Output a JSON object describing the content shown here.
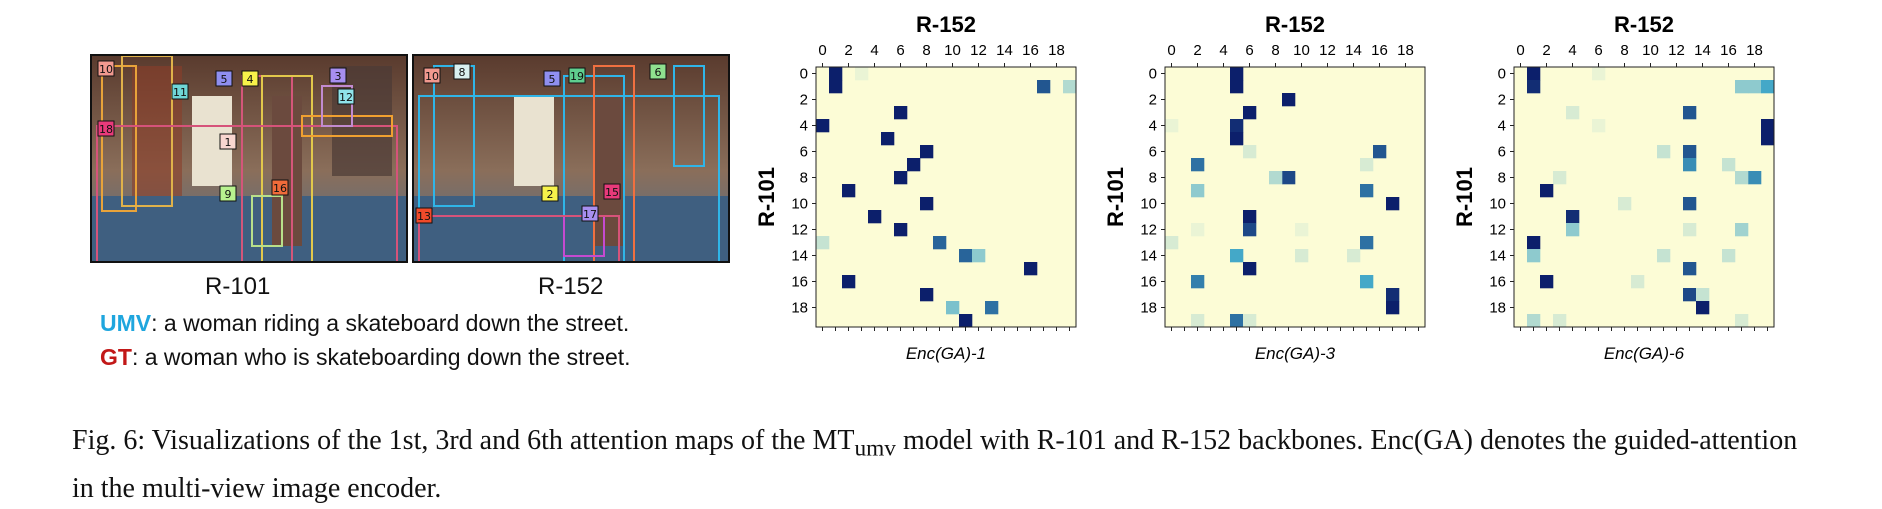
{
  "left_figure": {
    "image_labels": [
      "R-101",
      "R-152"
    ],
    "caption_umv": {
      "tag": "UMV",
      "text": ": a woman riding a skateboard down the street."
    },
    "caption_gt": {
      "tag": "GT",
      "text": ": a woman who is skateboarding down the street."
    },
    "r101_box_ids": [
      "10",
      "18",
      "11",
      "5",
      "4",
      "3",
      "12",
      "1",
      "9",
      "16"
    ],
    "r152_box_ids": [
      "10",
      "8",
      "5",
      "19",
      "6",
      "2",
      "15",
      "17",
      "13"
    ]
  },
  "colors": {
    "umv": "#1fa6de",
    "gt": "#c21818",
    "low": "#fcfcd6",
    "high": "#0c1f6b"
  },
  "chart_data": [
    {
      "type": "heatmap",
      "title": "R-152",
      "ylabel": "R-101",
      "xlabel": "Enc(GA)-1",
      "x_ticks": [
        "0",
        "2",
        "4",
        "6",
        "8",
        "10",
        "12",
        "14",
        "16",
        "18"
      ],
      "y_ticks": [
        "0",
        "2",
        "4",
        "6",
        "8",
        "10",
        "12",
        "14",
        "16",
        "18"
      ],
      "size": 20,
      "cells": [
        [
          0,
          1,
          1.0
        ],
        [
          1,
          1,
          1.0
        ],
        [
          0,
          3,
          0.05
        ],
        [
          1,
          17,
          0.8
        ],
        [
          1,
          19,
          0.2
        ],
        [
          3,
          6,
          1.0
        ],
        [
          4,
          0,
          1.0
        ],
        [
          5,
          5,
          1.0
        ],
        [
          6,
          8,
          1.0
        ],
        [
          7,
          7,
          1.0
        ],
        [
          8,
          6,
          1.0
        ],
        [
          9,
          2,
          1.0
        ],
        [
          10,
          8,
          1.0
        ],
        [
          11,
          4,
          1.0
        ],
        [
          12,
          6,
          1.0
        ],
        [
          13,
          0,
          0.15
        ],
        [
          13,
          9,
          0.75
        ],
        [
          14,
          11,
          0.75
        ],
        [
          14,
          12,
          0.3
        ],
        [
          15,
          16,
          1.0
        ],
        [
          16,
          2,
          1.0
        ],
        [
          17,
          8,
          1.0
        ],
        [
          18,
          10,
          0.35
        ],
        [
          18,
          13,
          0.7
        ],
        [
          19,
          11,
          1.0
        ]
      ]
    },
    {
      "type": "heatmap",
      "title": "R-152",
      "ylabel": "R-101",
      "xlabel": "Enc(GA)-3",
      "x_ticks": [
        "0",
        "2",
        "4",
        "6",
        "8",
        "10",
        "12",
        "14",
        "16",
        "18"
      ],
      "y_ticks": [
        "0",
        "2",
        "4",
        "6",
        "8",
        "10",
        "12",
        "14",
        "16",
        "18"
      ],
      "size": 20,
      "cells": [
        [
          0,
          5,
          1.0
        ],
        [
          1,
          5,
          1.0
        ],
        [
          2,
          9,
          1.0
        ],
        [
          3,
          6,
          1.0
        ],
        [
          4,
          5,
          0.95
        ],
        [
          5,
          5,
          1.0
        ],
        [
          6,
          6,
          0.1
        ],
        [
          6,
          16,
          0.8
        ],
        [
          7,
          2,
          0.7
        ],
        [
          7,
          15,
          0.1
        ],
        [
          8,
          9,
          0.85
        ],
        [
          8,
          8,
          0.2
        ],
        [
          9,
          2,
          0.3
        ],
        [
          9,
          15,
          0.7
        ],
        [
          10,
          17,
          1.0
        ],
        [
          11,
          6,
          1.0
        ],
        [
          12,
          6,
          0.85
        ],
        [
          13,
          0,
          0.1
        ],
        [
          13,
          15,
          0.7
        ],
        [
          14,
          5,
          0.5
        ],
        [
          14,
          10,
          0.1
        ],
        [
          14,
          14,
          0.1
        ],
        [
          15,
          6,
          1.0
        ],
        [
          16,
          2,
          0.65
        ],
        [
          16,
          15,
          0.5
        ],
        [
          17,
          17,
          0.95
        ],
        [
          18,
          17,
          1.0
        ],
        [
          19,
          5,
          0.7
        ],
        [
          19,
          2,
          0.1
        ],
        [
          19,
          6,
          0.1
        ],
        [
          12,
          2,
          0.05
        ],
        [
          12,
          10,
          0.05
        ],
        [
          4,
          0,
          0.05
        ]
      ]
    },
    {
      "type": "heatmap",
      "title": "R-152",
      "ylabel": "R-101",
      "xlabel": "Enc(GA)-6",
      "x_ticks": [
        "0",
        "2",
        "4",
        "6",
        "8",
        "10",
        "12",
        "14",
        "16",
        "18"
      ],
      "y_ticks": [
        "0",
        "2",
        "4",
        "6",
        "8",
        "10",
        "12",
        "14",
        "16",
        "18"
      ],
      "size": 20,
      "cells": [
        [
          0,
          1,
          1.0
        ],
        [
          1,
          1,
          0.95
        ],
        [
          1,
          17,
          0.3
        ],
        [
          1,
          18,
          0.3
        ],
        [
          1,
          19,
          0.5
        ],
        [
          3,
          13,
          0.8
        ],
        [
          3,
          4,
          0.1
        ],
        [
          4,
          19,
          1.0
        ],
        [
          5,
          19,
          1.0
        ],
        [
          6,
          13,
          0.8
        ],
        [
          6,
          11,
          0.15
        ],
        [
          7,
          13,
          0.6
        ],
        [
          7,
          16,
          0.15
        ],
        [
          8,
          18,
          0.6
        ],
        [
          8,
          3,
          0.1
        ],
        [
          8,
          17,
          0.2
        ],
        [
          9,
          2,
          1.0
        ],
        [
          10,
          13,
          0.8
        ],
        [
          10,
          8,
          0.1
        ],
        [
          11,
          4,
          0.95
        ],
        [
          12,
          4,
          0.3
        ],
        [
          12,
          17,
          0.25
        ],
        [
          12,
          13,
          0.1
        ],
        [
          13,
          1,
          1.0
        ],
        [
          14,
          1,
          0.3
        ],
        [
          14,
          11,
          0.15
        ],
        [
          14,
          16,
          0.15
        ],
        [
          15,
          13,
          0.8
        ],
        [
          16,
          2,
          1.0
        ],
        [
          16,
          9,
          0.1
        ],
        [
          17,
          13,
          0.85
        ],
        [
          17,
          14,
          0.15
        ],
        [
          18,
          14,
          1.0
        ],
        [
          19,
          1,
          0.2
        ],
        [
          19,
          3,
          0.1
        ],
        [
          19,
          17,
          0.1
        ],
        [
          0,
          6,
          0.05
        ],
        [
          4,
          6,
          0.05
        ]
      ]
    }
  ],
  "caption": {
    "prefix": "Fig. 6: Visualizations of the 1st, 3rd and 6th attention maps of the MT",
    "subscript": "umv",
    "suffix": " model with R-101 and R-152 backbones. Enc(GA) denotes the guided-attention in the multi-view image encoder."
  }
}
